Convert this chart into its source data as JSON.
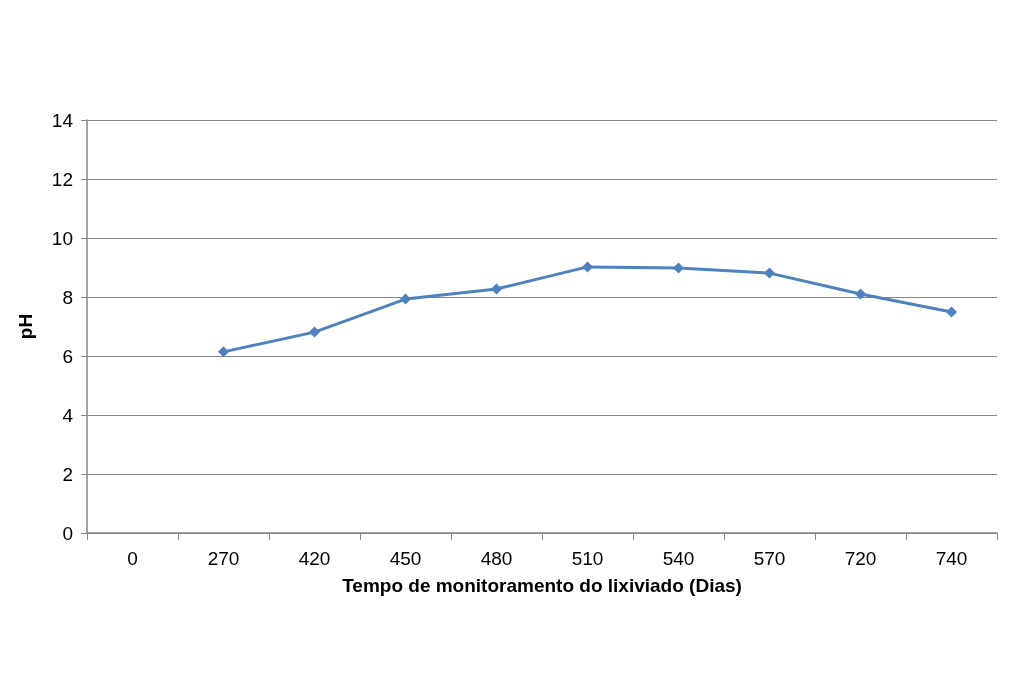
{
  "chart_data": {
    "type": "line",
    "xlabel": "Tempo de monitoramento do lixiviado (Dias)",
    "ylabel": "pH",
    "categories": [
      "0",
      "270",
      "420",
      "450",
      "480",
      "510",
      "540",
      "570",
      "720",
      "740"
    ],
    "series": [
      {
        "color": "#4f81bd",
        "values": [
          null,
          6.14,
          6.81,
          7.93,
          8.27,
          9.02,
          8.98,
          8.81,
          8.1,
          7.49
        ]
      }
    ],
    "ylim": [
      0,
      14
    ],
    "yticks": [
      0,
      2,
      4,
      6,
      8,
      10,
      12,
      14
    ],
    "grid": "y",
    "marker": "diamond",
    "line_style": "solid"
  }
}
